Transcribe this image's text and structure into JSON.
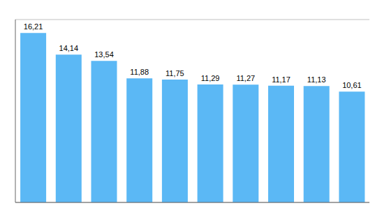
{
  "chart_data": {
    "type": "bar",
    "categories": [
      null,
      null,
      null,
      null,
      null,
      null,
      null,
      null,
      null,
      null
    ],
    "values": [
      16.21,
      14.14,
      13.54,
      11.88,
      11.75,
      11.29,
      11.27,
      11.17,
      11.13,
      10.61
    ],
    "value_labels": [
      "16,21",
      "14,14",
      "13,54",
      "11,88",
      "11,75",
      "11,29",
      "11,27",
      "11,17",
      "11,13",
      "10,61"
    ],
    "color": "#5BB8F5",
    "ylim": [
      0,
      17.5
    ],
    "yticks": [
      0,
      2.1875,
      4.375,
      6.5625,
      8.75,
      10.9375,
      13.125,
      15.3125,
      17.5
    ],
    "grid": true,
    "tick_labels": false,
    "data_labels": true
  }
}
